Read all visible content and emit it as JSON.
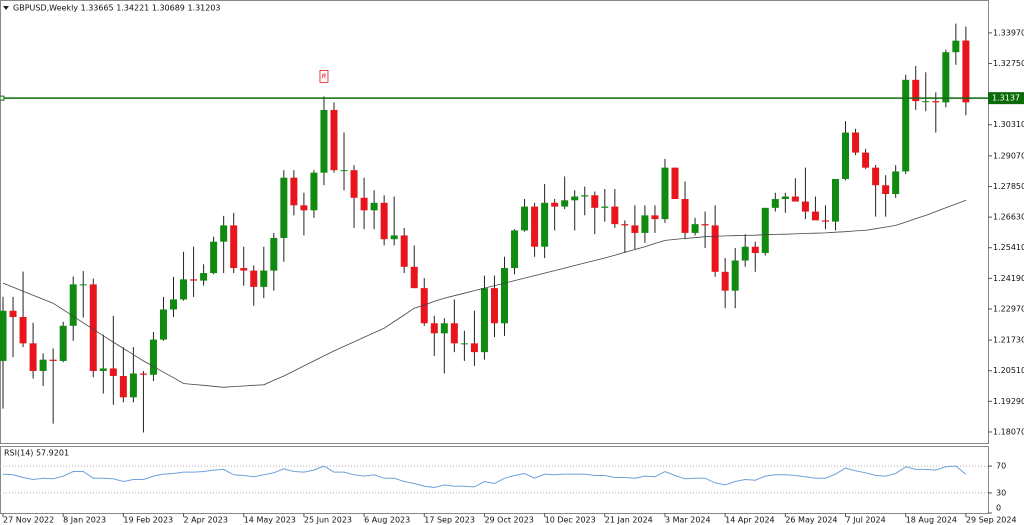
{
  "chart_data": {
    "type": "candlestick",
    "title": "GBPUSD,Weekly  1.33665 1.34221 1.30689 1.31203",
    "categories": [
      "27 Nov 2022",
      null,
      null,
      null,
      null,
      null,
      "8 Jan 2023",
      null,
      null,
      null,
      null,
      null,
      "19 Feb 2023",
      null,
      null,
      null,
      null,
      null,
      "2 Apr 2023",
      null,
      null,
      null,
      null,
      null,
      "14 May 2023",
      null,
      null,
      null,
      null,
      null,
      "25 Jun 2023",
      null,
      null,
      null,
      null,
      null,
      "6 Aug 2023",
      null,
      null,
      null,
      null,
      null,
      "17 Sep 2023",
      null,
      null,
      null,
      null,
      null,
      "29 Oct 2023",
      null,
      null,
      null,
      null,
      null,
      "10 Dec 2023",
      null,
      null,
      null,
      null,
      null,
      "21 Jan 2024",
      null,
      null,
      null,
      null,
      null,
      "3 Mar 2024",
      null,
      null,
      null,
      null,
      null,
      "14 Apr 2024",
      null,
      null,
      null,
      null,
      null,
      "26 May 2024",
      null,
      null,
      null,
      null,
      null,
      "7 Jul 2024",
      null,
      null,
      null,
      null,
      null,
      "18 Aug 2024",
      null,
      null,
      null,
      null,
      null,
      "29 Sep 2024"
    ],
    "open": [
      1.209,
      1.229,
      1.2265,
      1.216,
      1.205,
      1.2095,
      1.209,
      1.223,
      1.2395,
      1.2395,
      1.205,
      1.206,
      1.203,
      1.1945,
      1.204,
      1.2035,
      1.2175,
      1.2295,
      1.2335,
      1.2415,
      1.241,
      1.244,
      1.2565,
      1.263,
      1.246,
      1.245,
      1.2385,
      1.245,
      1.258,
      1.282,
      1.271,
      1.269,
      1.284,
      1.309,
      1.285,
      1.285,
      1.274,
      1.269,
      1.272,
      1.2575,
      1.259,
      1.2465,
      1.238,
      1.224,
      1.22,
      1.224,
      1.216,
      1.216,
      1.2125,
      1.238,
      1.224,
      1.246,
      1.261,
      1.2705,
      1.2545,
      1.272,
      1.2705,
      1.273,
      1.2745,
      1.275,
      1.27,
      1.2705,
      1.2635,
      1.263,
      1.26,
      1.267,
      1.2655,
      1.286,
      1.2735,
      1.26,
      1.2635,
      1.263,
      1.2445,
      1.237,
      1.249,
      1.2545,
      1.252,
      1.27,
      1.2735,
      1.2745,
      1.2725,
      1.2685,
      1.265,
      1.2645,
      1.2815,
      1.3,
      1.292,
      1.286,
      1.279,
      1.2755,
      1.2845,
      1.321,
      1.3125,
      1.3125,
      1.312,
      1.332,
      1.33665
    ],
    "high": [
      1.2345,
      1.2345,
      1.2446,
      1.2242,
      1.212,
      1.214,
      1.2246,
      1.2426,
      1.2448,
      1.2418,
      1.2195,
      1.227,
      1.2145,
      1.2145,
      1.205,
      1.2205,
      1.2345,
      1.2425,
      1.2525,
      1.2545,
      1.2475,
      1.2585,
      1.2668,
      1.268,
      1.2545,
      1.247,
      1.2545,
      1.26,
      1.285,
      1.285,
      1.276,
      1.285,
      1.3144,
      1.312,
      1.3,
      1.287,
      1.282,
      1.277,
      1.275,
      1.2745,
      1.262,
      1.255,
      1.242,
      1.227,
      1.226,
      1.2335,
      1.221,
      1.229,
      1.243,
      1.243,
      1.2505,
      1.2615,
      1.2735,
      1.272,
      1.2795,
      1.2735,
      1.2825,
      1.277,
      1.2785,
      1.2765,
      1.2775,
      1.2775,
      1.265,
      1.271,
      1.271,
      1.271,
      1.2895,
      1.286,
      1.2805,
      1.266,
      1.2685,
      1.271,
      1.25,
      1.254,
      1.2595,
      1.2565,
      1.2695,
      1.276,
      1.276,
      1.2818,
      1.286,
      1.2745,
      1.271,
      1.2815,
      1.3045,
      1.3015,
      1.2935,
      1.287,
      1.283,
      1.287,
      1.323,
      1.3265,
      1.324,
      1.316,
      1.333,
      1.3434,
      1.34221
    ],
    "low": [
      1.19,
      1.2105,
      1.2145,
      1.202,
      1.199,
      1.184,
      1.2085,
      1.217,
      1.2263,
      1.2025,
      1.196,
      1.1915,
      1.1925,
      1.1925,
      1.1805,
      1.201,
      1.217,
      1.2265,
      1.233,
      1.2345,
      1.239,
      1.2435,
      1.244,
      1.244,
      1.239,
      1.231,
      1.234,
      1.237,
      1.2485,
      1.267,
      1.259,
      1.266,
      1.279,
      1.284,
      1.277,
      1.262,
      1.2615,
      1.2615,
      1.255,
      1.255,
      1.244,
      1.238,
      1.223,
      1.211,
      1.204,
      1.2125,
      1.209,
      1.207,
      1.2095,
      1.2185,
      1.219,
      1.2435,
      1.2605,
      1.2505,
      1.25,
      1.261,
      1.2695,
      1.261,
      1.267,
      1.2595,
      1.2645,
      1.262,
      1.252,
      1.2535,
      1.256,
      1.26,
      1.264,
      1.274,
      1.2575,
      1.259,
      1.254,
      1.2425,
      1.23,
      1.23,
      1.2465,
      1.2445,
      1.251,
      1.2685,
      1.268,
      1.2725,
      1.2655,
      1.2655,
      1.2615,
      1.261,
      1.281,
      1.291,
      1.2855,
      1.2665,
      1.2665,
      1.274,
      1.2835,
      1.309,
      1.3085,
      1.3,
      1.31,
      1.327,
      1.30689
    ],
    "close": [
      1.229,
      1.2265,
      1.216,
      1.205,
      1.2095,
      1.209,
      1.223,
      1.2395,
      1.2395,
      1.205,
      1.206,
      1.203,
      1.1945,
      1.204,
      1.2035,
      1.2175,
      1.2295,
      1.2335,
      1.2415,
      1.241,
      1.244,
      1.2565,
      1.263,
      1.246,
      1.245,
      1.2385,
      1.245,
      1.258,
      1.282,
      1.271,
      1.269,
      1.284,
      1.309,
      1.285,
      1.285,
      1.274,
      1.269,
      1.272,
      1.2575,
      1.259,
      1.2465,
      1.238,
      1.224,
      1.22,
      1.224,
      1.216,
      1.216,
      1.2125,
      1.238,
      1.224,
      1.246,
      1.261,
      1.2705,
      1.2545,
      1.272,
      1.2705,
      1.273,
      1.2745,
      1.275,
      1.27,
      1.2705,
      1.2635,
      1.263,
      1.26,
      1.267,
      1.2655,
      1.286,
      1.2735,
      1.26,
      1.2635,
      1.263,
      1.2445,
      1.237,
      1.249,
      1.2545,
      1.252,
      1.27,
      1.2735,
      1.2745,
      1.2725,
      1.2685,
      1.265,
      1.2645,
      1.2815,
      1.3,
      1.292,
      1.286,
      1.279,
      1.2755,
      1.2845,
      1.321,
      1.3125,
      1.3125,
      1.312,
      1.332,
      1.3366,
      1.31203
    ],
    "up_color": "#118a11",
    "down_color": "#e8161c",
    "moving_average": {
      "color": "#444444",
      "values": [
        1.24,
        1.2384,
        1.2368,
        1.2352,
        1.2336,
        1.232,
        1.2294,
        1.2268,
        1.2242,
        1.2216,
        1.219,
        1.2165,
        1.214,
        1.2115,
        1.209,
        1.2068,
        1.2045,
        1.2023,
        1.2,
        1.1996,
        1.1993,
        1.1989,
        1.1985,
        1.1988,
        1.199,
        1.1993,
        1.1995,
        1.2013,
        1.203,
        1.205,
        1.207,
        1.209,
        1.211,
        1.213,
        1.2148,
        1.2166,
        1.2184,
        1.2202,
        1.222,
        1.2247,
        1.2273,
        1.23,
        1.2313,
        1.2327,
        1.234,
        1.235,
        1.236,
        1.237,
        1.238,
        1.239,
        1.24,
        1.241,
        1.242,
        1.243,
        1.244,
        1.245,
        1.246,
        1.247,
        1.248,
        1.249,
        1.25,
        1.2511,
        1.2523,
        1.2534,
        1.2545,
        1.2558,
        1.257,
        1.2574,
        1.2578,
        1.2581,
        1.2585,
        1.2586,
        1.2588,
        1.2589,
        1.259,
        1.2591,
        1.2593,
        1.2594,
        1.2595,
        1.2596,
        1.2598,
        1.2599,
        1.26,
        1.2603,
        1.2605,
        1.2608,
        1.261,
        1.2617,
        1.2623,
        1.263,
        1.2643,
        1.2657,
        1.267,
        1.2685,
        1.27,
        1.2715,
        1.273
      ]
    },
    "level": {
      "value": 1.3137,
      "label": "1.3137",
      "color": "#0b6b0b"
    },
    "marker_label": "R",
    "ylim": [
      1.1763,
      1.3528
    ],
    "yticks": [
      {
        "value": 1.3397,
        "label": "1.33970"
      },
      {
        "value": 1.3275,
        "label": "1.32750"
      },
      {
        "value": 1.3031,
        "label": "1.30310"
      },
      {
        "value": 1.2907,
        "label": "1.29070"
      },
      {
        "value": 1.2785,
        "label": "1.27850"
      },
      {
        "value": 1.2663,
        "label": "1.26630"
      },
      {
        "value": 1.2541,
        "label": "1.25410"
      },
      {
        "value": 1.2419,
        "label": "1.24190"
      },
      {
        "value": 1.2297,
        "label": "1.22970"
      },
      {
        "value": 1.2173,
        "label": "1.21730"
      },
      {
        "value": 1.2051,
        "label": "1.20510"
      },
      {
        "value": 1.1929,
        "label": "1.19290"
      },
      {
        "value": 1.1807,
        "label": "1.18070"
      }
    ],
    "indicator": {
      "type": "line",
      "title": "RSI(14) 57.9201",
      "color": "#6fa0dc",
      "values": [
        58,
        57,
        53,
        50,
        52,
        51,
        55,
        62,
        62,
        52,
        52,
        51,
        47,
        50,
        50,
        55,
        58,
        59,
        61,
        61,
        62,
        64,
        65,
        57,
        56,
        54,
        57,
        60,
        66,
        62,
        61,
        64,
        70,
        61,
        61,
        57,
        55,
        57,
        52,
        52,
        47,
        44,
        40,
        38,
        42,
        40,
        40,
        39,
        47,
        44,
        52,
        56,
        59,
        52,
        58,
        57,
        58,
        58,
        58,
        56,
        56,
        53,
        53,
        52,
        55,
        54,
        62,
        56,
        51,
        52,
        52,
        45,
        42,
        47,
        50,
        49,
        55,
        57,
        57,
        56,
        54,
        52,
        52,
        58,
        67,
        63,
        60,
        56,
        55,
        59,
        69,
        65,
        65,
        64,
        69,
        70,
        57.9201
      ],
      "ylim": [
        0,
        100
      ],
      "yticks": [
        0,
        30,
        70
      ]
    }
  }
}
